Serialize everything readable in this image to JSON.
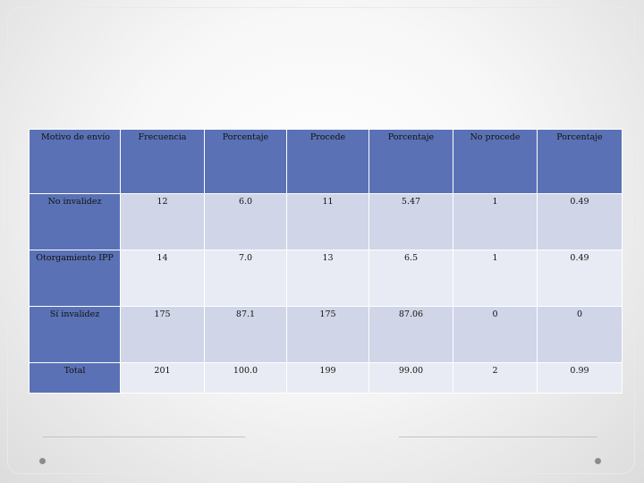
{
  "table": {
    "headers": [
      "Motivo de envío",
      "Frecuencia",
      "Porcentaje",
      "Procede",
      "Porcentaje",
      "No procede",
      "Porcentaje"
    ],
    "rows": [
      {
        "label": "No invalidez",
        "values": [
          "12",
          "6.0",
          "11",
          "5.47",
          "1",
          "0.49"
        ]
      },
      {
        "label": "Otorgamiento IPP",
        "values": [
          "14",
          "7.0",
          "13",
          "6.5",
          "1",
          "0.49"
        ]
      },
      {
        "label": "Sí invalidez",
        "values": [
          "175",
          "87.1",
          "175",
          "87.06",
          "0",
          "0"
        ]
      },
      {
        "label": "Total",
        "values": [
          "201",
          "100.0",
          "199",
          "99.00",
          "2",
          "0.99"
        ]
      }
    ]
  },
  "colors": {
    "header_bg": "#5a72b5",
    "row_odd_bg": "#d0d6e8",
    "row_even_bg": "#e8ebf3"
  }
}
